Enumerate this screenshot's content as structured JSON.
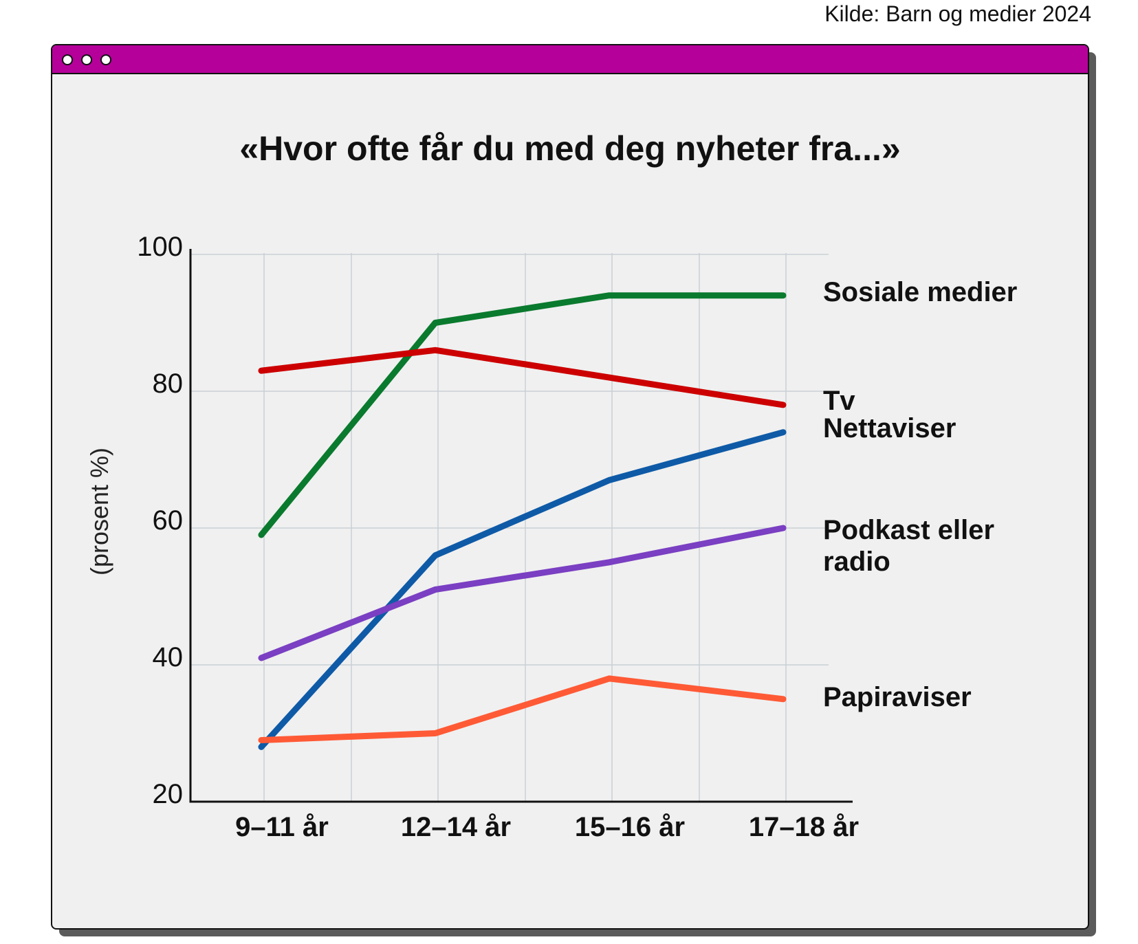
{
  "source": "Kilde: Barn og medier 2024",
  "window": {
    "titlebar_color": "#b5009a"
  },
  "chart_data": {
    "type": "line",
    "title": "«Hvor ofte får du med deg nyheter fra...»",
    "ylabel": "(prosent %)",
    "xlabel": "",
    "categories": [
      "9–11 år",
      "12–14 år",
      "15–16 år",
      "17–18 år"
    ],
    "yticks": [
      "100",
      "80",
      "60",
      "40",
      "20"
    ],
    "ylim": [
      20,
      100
    ],
    "grid": true,
    "legend": "right, labels at line ends",
    "series": [
      {
        "name": "Sosiale medier",
        "label_lines": [
          "Sosiale medier"
        ],
        "color": "#0a7a2e",
        "values": [
          59,
          90,
          94,
          94
        ]
      },
      {
        "name": "Tv",
        "label_lines": [
          "Tv"
        ],
        "color": "#cc0000",
        "values": [
          83,
          86,
          82,
          78
        ]
      },
      {
        "name": "Nettaviser",
        "label_lines": [
          "Nettaviser"
        ],
        "color": "#0e5aa7",
        "values": [
          28,
          56,
          67,
          74
        ]
      },
      {
        "name": "Podkast eller radio",
        "label_lines": [
          "Podkast eller",
          "radio"
        ],
        "color": "#7a3fc2",
        "values": [
          41,
          51,
          55,
          60
        ]
      },
      {
        "name": "Papiraviser",
        "label_lines": [
          "Papiraviser"
        ],
        "color": "#ff5a36",
        "values": [
          29,
          30,
          38,
          35
        ]
      }
    ]
  }
}
